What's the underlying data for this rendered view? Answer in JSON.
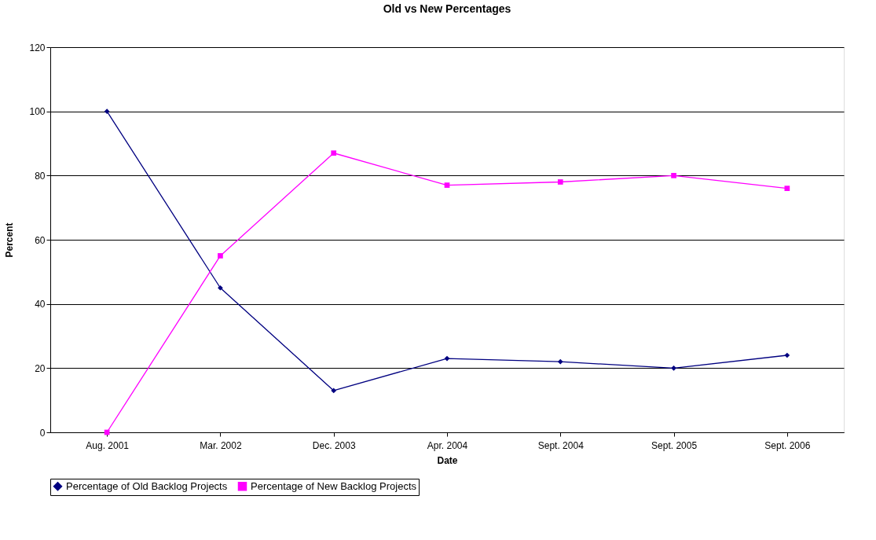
{
  "chart_data": {
    "type": "line",
    "title": "Old vs New Percentages",
    "xlabel": "Date",
    "ylabel": "Percent",
    "categories": [
      "Aug. 2001",
      "Mar. 2002",
      "Dec. 2003",
      "Apr. 2004",
      "Sept. 2004",
      "Sept. 2005",
      "Sept. 2006"
    ],
    "series": [
      {
        "name": "Percentage of Old Backlog Projects",
        "color": "#000080",
        "marker": "diamond",
        "values": [
          100,
          45,
          13,
          23,
          22,
          20,
          24
        ]
      },
      {
        "name": "Percentage of New Backlog Projects",
        "color": "#ff00ff",
        "marker": "square",
        "values": [
          0,
          55,
          87,
          77,
          78,
          80,
          76
        ]
      }
    ],
    "ylim": [
      0,
      120
    ],
    "yticks": [
      0,
      20,
      40,
      60,
      80,
      100,
      120
    ],
    "grid": "y",
    "legend": "bottom",
    "line_style": "solid"
  }
}
